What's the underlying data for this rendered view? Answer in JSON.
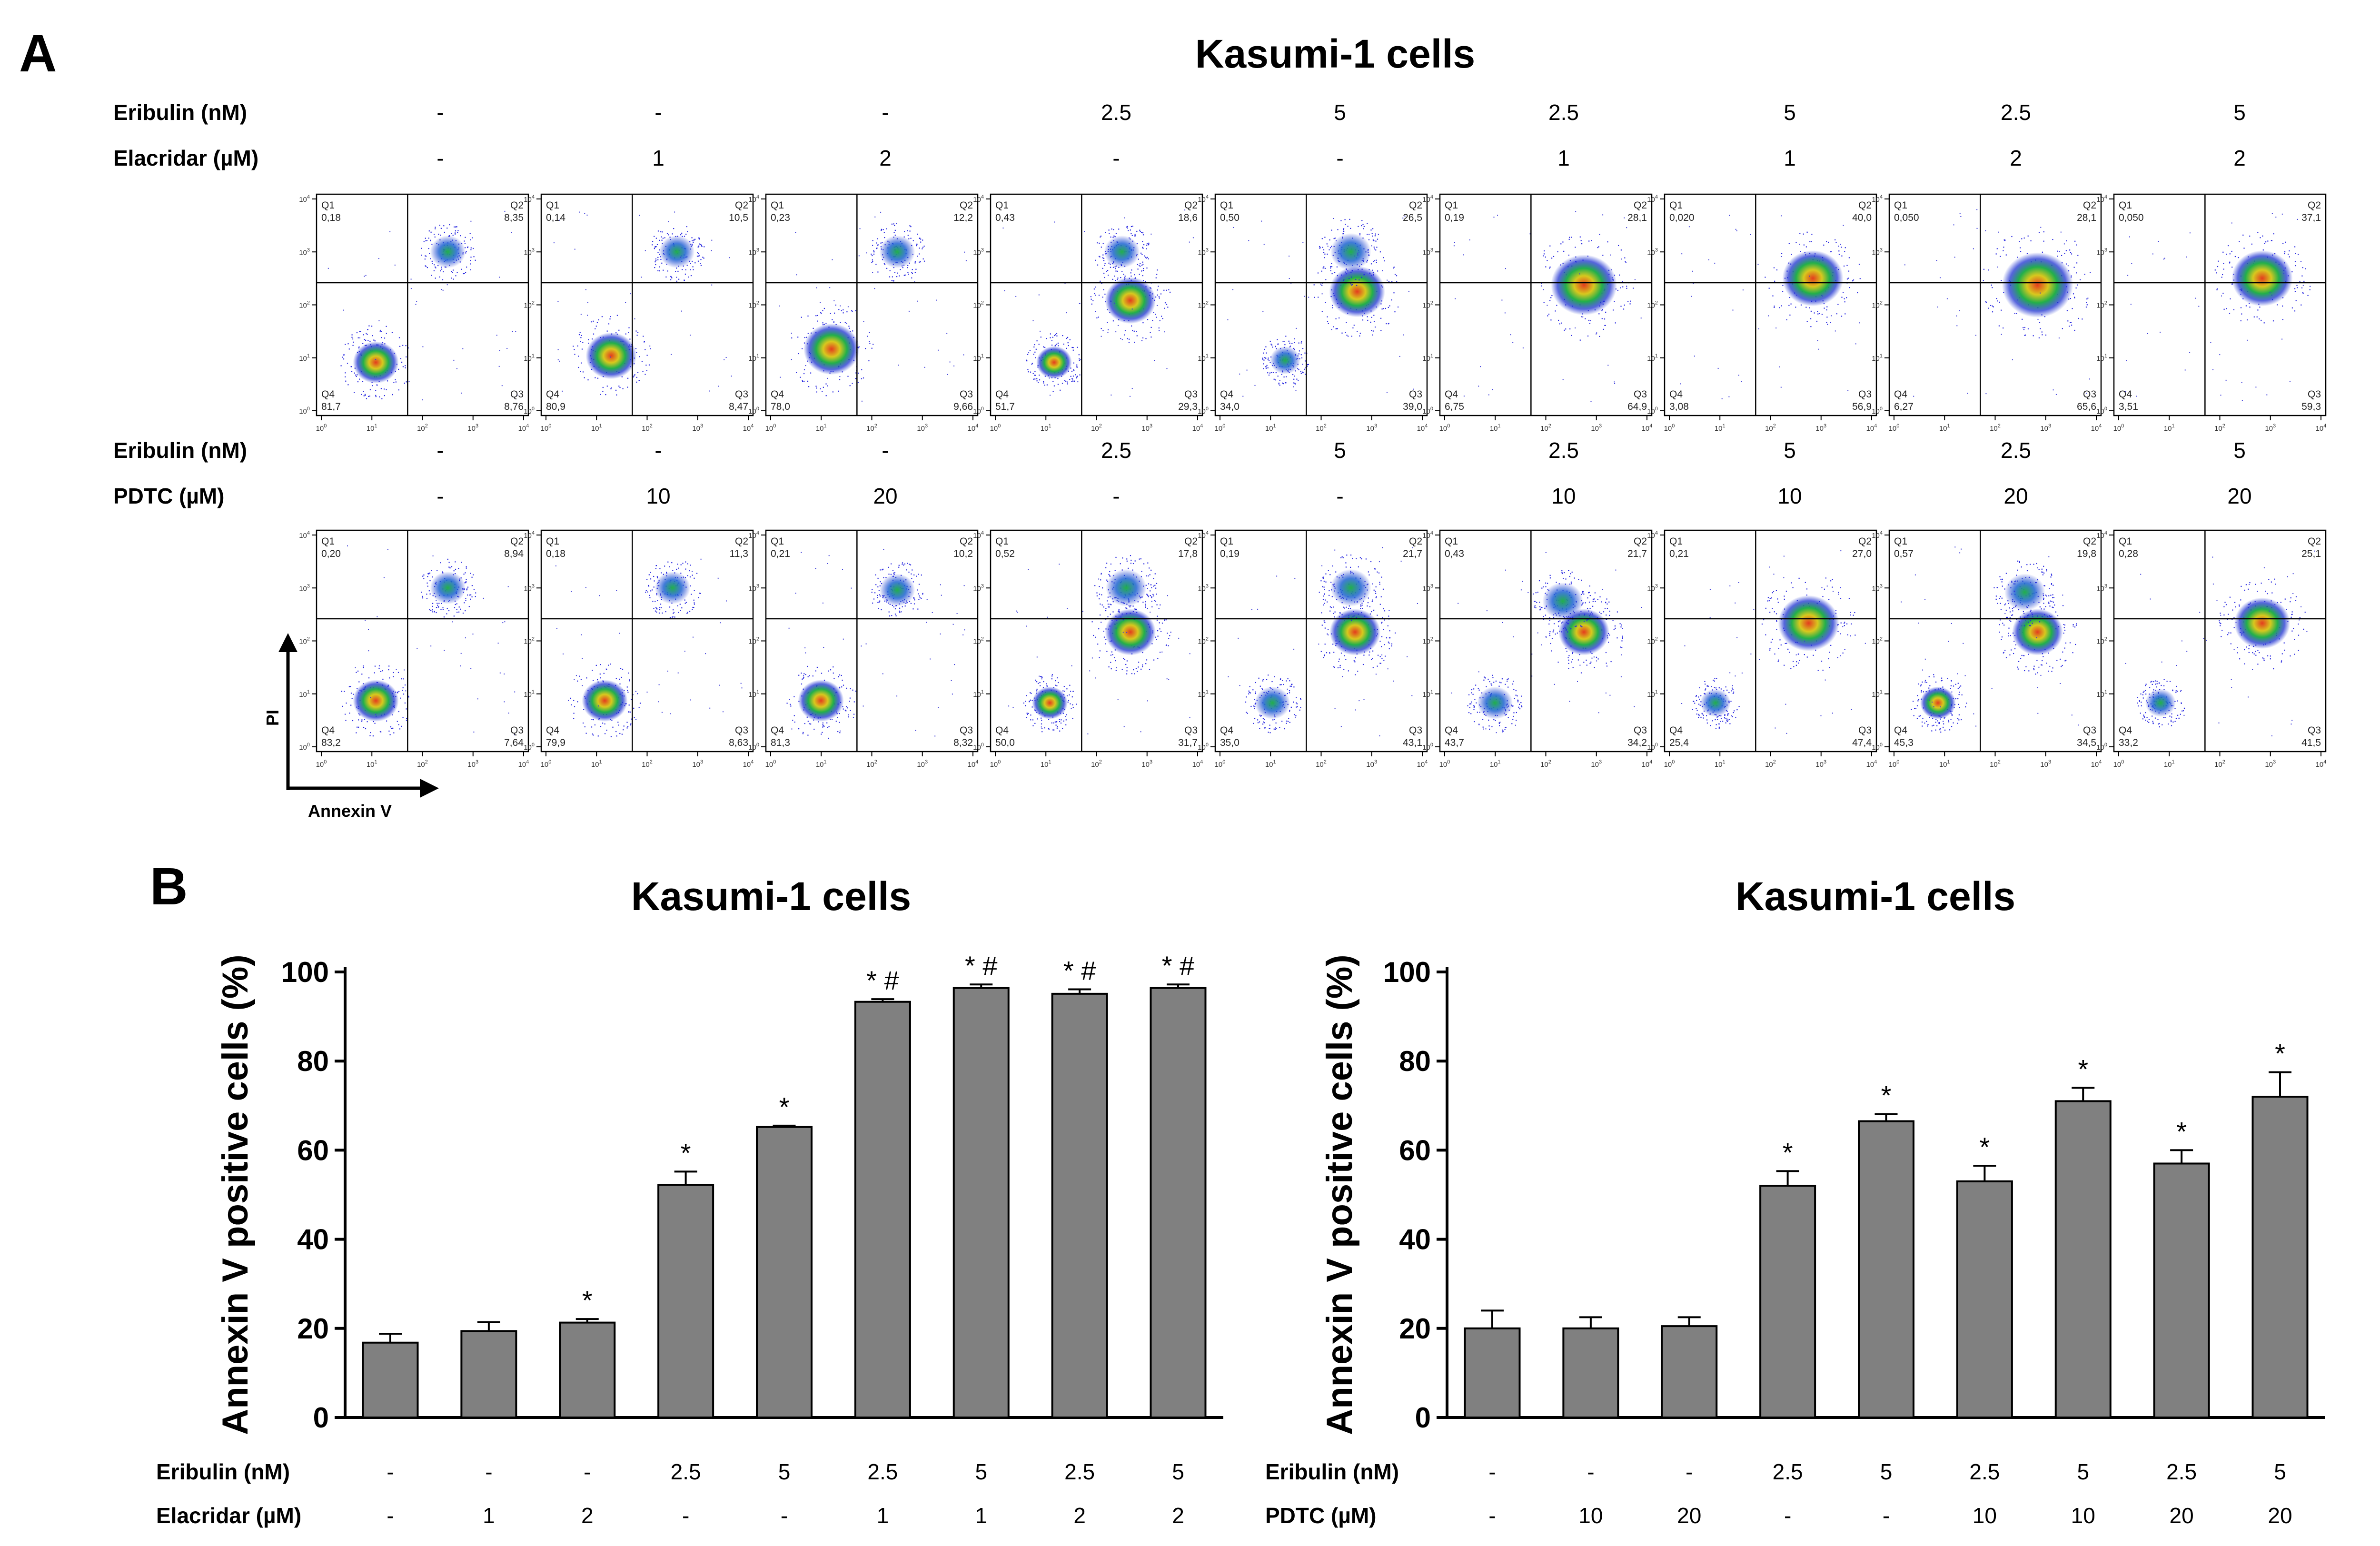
{
  "panel_a": {
    "letter": "A",
    "title": "Kasumi-1 cells",
    "axis_x": "Annexin V",
    "axis_y": "PI",
    "tick_exponents": [
      "0",
      "1",
      "2",
      "3",
      "4"
    ],
    "rows": [
      {
        "labels": [
          "Eribulin (nM)",
          "Elacridar (µM)"
        ],
        "eribulin": [
          "-",
          "-",
          "-",
          "2.5",
          "5",
          "2.5",
          "5",
          "2.5",
          "5"
        ],
        "agent": [
          "-",
          "1",
          "2",
          "-",
          "-",
          "1",
          "1",
          "2",
          "2"
        ],
        "plots": [
          {
            "q1": "0,18",
            "q2": "8,35",
            "q3": "8,76",
            "q4": "81,7"
          },
          {
            "q1": "0,14",
            "q2": "10,5",
            "q3": "8,47",
            "q4": "80,9"
          },
          {
            "q1": "0,23",
            "q2": "12,2",
            "q3": "9,66",
            "q4": "78,0"
          },
          {
            "q1": "0,43",
            "q2": "18,6",
            "q3": "29,3",
            "q4": "51,7"
          },
          {
            "q1": "0,50",
            "q2": "26,5",
            "q3": "39,0",
            "q4": "34,0"
          },
          {
            "q1": "0,19",
            "q2": "28,1",
            "q3": "64,9",
            "q4": "6,75"
          },
          {
            "q1": "0,020",
            "q2": "40,0",
            "q3": "56,9",
            "q4": "3,08"
          },
          {
            "q1": "0,050",
            "q2": "28,1",
            "q3": "65,6",
            "q4": "6,27"
          },
          {
            "q1": "0,050",
            "q2": "37,1",
            "q3": "59,3",
            "q4": "3,51"
          }
        ]
      },
      {
        "labels": [
          "Eribulin (nM)",
          "PDTC (µM)"
        ],
        "eribulin": [
          "-",
          "-",
          "-",
          "2.5",
          "5",
          "2.5",
          "5",
          "2.5",
          "5"
        ],
        "agent": [
          "-",
          "10",
          "20",
          "-",
          "-",
          "10",
          "10",
          "20",
          "20"
        ],
        "plots": [
          {
            "q1": "0,20",
            "q2": "8,94",
            "q3": "7,64",
            "q4": "83,2"
          },
          {
            "q1": "0,18",
            "q2": "11,3",
            "q3": "8,63",
            "q4": "79,9"
          },
          {
            "q1": "0,21",
            "q2": "10,2",
            "q3": "8,32",
            "q4": "81,3"
          },
          {
            "q1": "0,52",
            "q2": "17,8",
            "q3": "31,7",
            "q4": "50,0"
          },
          {
            "q1": "0,19",
            "q2": "21,7",
            "q3": "43,1",
            "q4": "35,0"
          },
          {
            "q1": "0,43",
            "q2": "21,7",
            "q3": "34,2",
            "q4": "43,7"
          },
          {
            "q1": "0,21",
            "q2": "27,0",
            "q3": "47,4",
            "q4": "25,4"
          },
          {
            "q1": "0,57",
            "q2": "19,8",
            "q3": "34,5",
            "q4": "45,3"
          },
          {
            "q1": "0,28",
            "q2": "25,1",
            "q3": "41,5",
            "q4": "33,2"
          }
        ]
      }
    ]
  },
  "panel_b": {
    "letter": "B"
  },
  "colors": {
    "bar": "#808080",
    "density_low": "#1e1ed2",
    "density_high": "#e43c1e"
  },
  "chart_data": [
    {
      "type": "bar",
      "title": "Kasumi-1 cells",
      "ylabel": "Annexin V positive cells (%)",
      "ylim": [
        0,
        100
      ],
      "yticks": [
        0,
        20,
        40,
        60,
        80,
        100
      ],
      "row_labels": [
        "Eribulin (nM)",
        "Elacridar (µM)"
      ],
      "eribulin": [
        "-",
        "-",
        "-",
        "2.5",
        "5",
        "2.5",
        "5",
        "2.5",
        "5"
      ],
      "agent": [
        "-",
        "1",
        "2",
        "-",
        "-",
        "1",
        "1",
        "2",
        "2"
      ],
      "values": [
        16.8,
        19.4,
        21.3,
        52.2,
        65.2,
        93.3,
        96.4,
        95.1,
        96.4
      ],
      "errors": [
        2.0,
        2.0,
        0.8,
        3.0,
        0.3,
        0.6,
        0.8,
        1.0,
        0.8
      ],
      "annotations": [
        "",
        "",
        "*",
        "*",
        "*",
        "* #",
        "* #",
        "* #",
        "* #"
      ]
    },
    {
      "type": "bar",
      "title": "Kasumi-1 cells",
      "ylabel": "Annexin V positive cells (%)",
      "ylim": [
        0,
        100
      ],
      "yticks": [
        0,
        20,
        40,
        60,
        80,
        100
      ],
      "row_labels": [
        "Eribulin (nM)",
        "PDTC (µM)"
      ],
      "eribulin": [
        "-",
        "-",
        "-",
        "2.5",
        "5",
        "2.5",
        "5",
        "2.5",
        "5"
      ],
      "agent": [
        "-",
        "10",
        "20",
        "-",
        "-",
        "10",
        "10",
        "20",
        "20"
      ],
      "values": [
        20.0,
        20.0,
        20.5,
        52.0,
        66.5,
        53.0,
        71.0,
        57.0,
        72.0
      ],
      "errors": [
        4.0,
        2.5,
        2.0,
        3.3,
        1.6,
        3.5,
        3.0,
        3.0,
        5.5
      ],
      "annotations": [
        "",
        "",
        "",
        "*",
        "*",
        "*",
        "*",
        "*",
        "*"
      ]
    }
  ]
}
